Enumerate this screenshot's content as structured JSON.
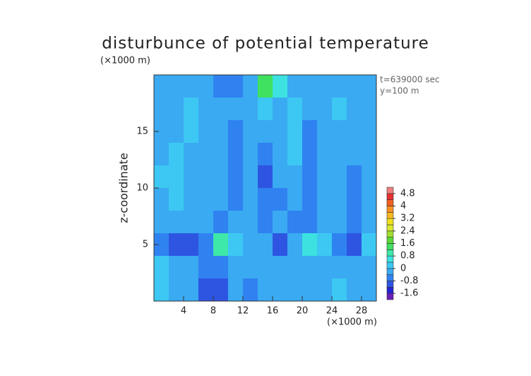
{
  "chart_data": {
    "type": "contour",
    "title": "disturbunce of potential temperature",
    "y_unit": "(×1000 m)",
    "x_unit": "(×1000 m)",
    "ylabel": "z-coordinate",
    "annotations": [
      "t=639000 sec",
      "y=100 m"
    ],
    "xlim": [
      0,
      30
    ],
    "ylim": [
      0,
      20
    ],
    "xticks": [
      4,
      8,
      12,
      16,
      20,
      24,
      28
    ],
    "yticks": [
      5,
      10,
      15
    ],
    "x": [
      1,
      3,
      5,
      7,
      9,
      11,
      13,
      15,
      17,
      19,
      21,
      23,
      25,
      27,
      29
    ],
    "y": [
      19,
      17,
      15,
      13,
      11,
      9,
      7,
      5,
      3,
      1
    ],
    "z": [
      [
        -0.2,
        -0.2,
        -0.3,
        -0.4,
        -0.6,
        -0.7,
        -0.3,
        1.2,
        0.5,
        -0.2,
        -0.3,
        -0.2,
        -0.2,
        -0.2,
        -0.1
      ],
      [
        -0.2,
        -0.1,
        0.1,
        -0.2,
        -0.3,
        -0.4,
        -0.3,
        0.2,
        -0.2,
        0.3,
        -0.3,
        -0.2,
        0.0,
        -0.2,
        -0.2
      ],
      [
        -0.2,
        -0.2,
        0.0,
        -0.3,
        -0.2,
        -0.6,
        -0.2,
        -0.1,
        -0.4,
        0.2,
        -0.5,
        -0.2,
        -0.1,
        -0.2,
        -0.2
      ],
      [
        -0.1,
        0.1,
        -0.2,
        -0.3,
        -0.2,
        -0.7,
        -0.3,
        -0.7,
        -0.2,
        0.1,
        -0.6,
        -0.2,
        -0.1,
        -0.2,
        -0.2
      ],
      [
        0.0,
        0.1,
        -0.2,
        -0.4,
        -0.3,
        -0.6,
        -0.2,
        -0.8,
        -0.3,
        -0.1,
        -0.6,
        -0.1,
        -0.4,
        -0.6,
        -0.2
      ],
      [
        -0.2,
        0.1,
        -0.3,
        -0.4,
        -0.4,
        -0.5,
        -0.2,
        -0.6,
        -0.6,
        -0.2,
        -0.5,
        -0.2,
        -0.3,
        -0.7,
        -0.2
      ],
      [
        -0.3,
        -0.3,
        -0.3,
        -0.4,
        -0.6,
        -0.3,
        -0.4,
        -0.7,
        -0.3,
        -0.6,
        -0.5,
        -0.3,
        -0.4,
        -0.7,
        -0.1
      ],
      [
        -0.7,
        -0.8,
        -0.9,
        -0.6,
        0.9,
        0.2,
        -0.2,
        -0.3,
        -0.8,
        -0.3,
        0.6,
        0.3,
        -0.5,
        -0.8,
        0.3
      ],
      [
        0.3,
        -0.3,
        -0.3,
        -0.5,
        -0.6,
        -0.3,
        -0.3,
        -0.2,
        -0.4,
        -0.3,
        -0.4,
        -0.3,
        -0.2,
        -0.3,
        -0.2
      ],
      [
        0.4,
        -0.2,
        -0.3,
        -0.8,
        -0.9,
        -0.3,
        -0.5,
        -0.2,
        -0.3,
        -0.2,
        -0.3,
        -0.2,
        0.2,
        -0.1,
        -0.2
      ]
    ],
    "colorbar": {
      "lim": [
        -2,
        5.2
      ],
      "ticks": [
        4.8,
        4,
        3.2,
        2.4,
        1.6,
        0.8,
        0,
        -0.8,
        -1.6
      ],
      "colors": [
        "#6a1fb8",
        "#2424d0",
        "#2e55e2",
        "#2f82f0",
        "#3aaaf2",
        "#3cc8f2",
        "#3de2e0",
        "#3ee8a8",
        "#40e060",
        "#5ad83a",
        "#a0e030",
        "#d8e830",
        "#f0e020",
        "#f8b820",
        "#f89020",
        "#f06020",
        "#e83030",
        "#f08080"
      ]
    }
  }
}
